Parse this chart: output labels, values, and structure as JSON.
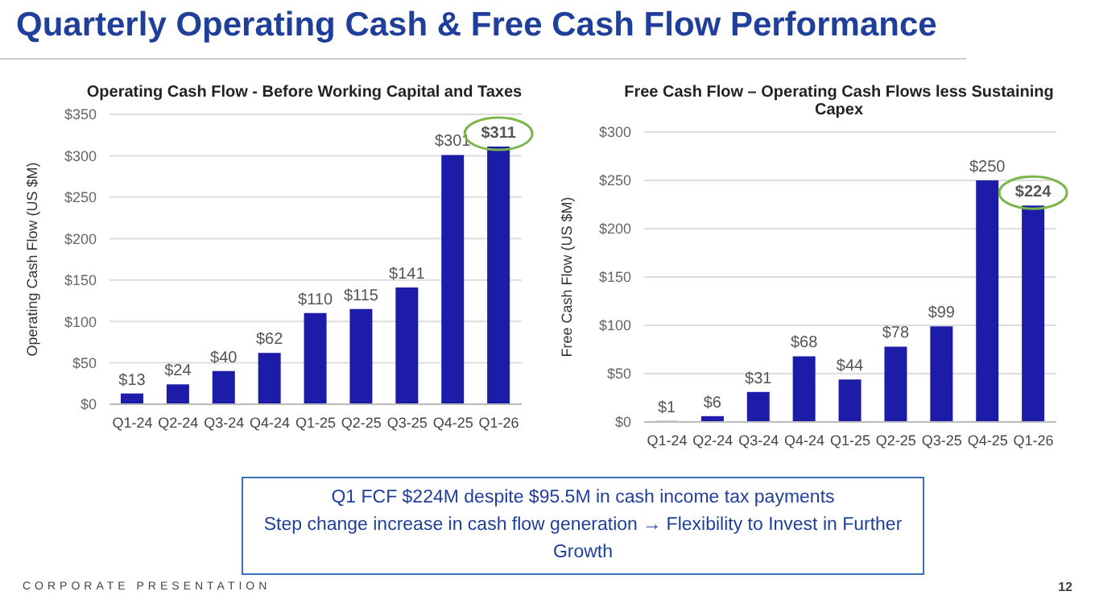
{
  "chart_data": [
    {
      "type": "bar",
      "title": "Quarterly Operating Cash & Free Cash Flow Performance",
      "subtitle": "Operating Cash Flow - Before Working Capital and Taxes",
      "ylabel": "Operating Cash Flow (US $M)",
      "categories": [
        "Q1-24",
        "Q2-24",
        "Q3-24",
        "Q4-24",
        "Q1-25",
        "Q2-25",
        "Q3-25",
        "Q4-25",
        "Q1-26"
      ],
      "values": [
        13,
        24,
        40,
        62,
        110,
        115,
        141,
        301,
        311
      ],
      "value_labels": [
        "$13",
        "$24",
        "$40",
        "$62",
        "$110",
        "$115",
        "$141",
        "$301",
        "$311"
      ],
      "color": "#1c1ca8",
      "ylim": [
        0,
        350
      ],
      "yticks": [
        {
          "value": 0,
          "label": "$0"
        },
        {
          "value": 50,
          "label": "$50"
        },
        {
          "value": 100,
          "label": "$100"
        },
        {
          "value": 150,
          "label": "$150"
        },
        {
          "value": 200,
          "label": "$200"
        },
        {
          "value": 250,
          "label": "$250"
        },
        {
          "value": 300,
          "label": "$300"
        },
        {
          "value": 350,
          "label": "$350"
        }
      ],
      "grid": "y",
      "legend": false,
      "annotations": [
        "CORPORATE PRESENTATION",
        "12"
      ]
    },
    {
      "type": "bar",
      "subtitle": "Free Cash Flow – Operating Cash Flows less Sustaining Capex",
      "ylabel": "Free Cash Flow (US $M)",
      "categories": [
        "Q1-24",
        "Q2-24",
        "Q3-24",
        "Q4-24",
        "Q1-25",
        "Q2-25",
        "Q3-25",
        "Q4-25",
        "Q1-26"
      ],
      "values": [
        1,
        6,
        31,
        68,
        44,
        78,
        99,
        250,
        224
      ],
      "value_labels": [
        "$1",
        "$6",
        "$31",
        "$68",
        "$44",
        "$78",
        "$99",
        "$250",
        "$224"
      ],
      "color": "#1c1ca8",
      "ylim": [
        0,
        300
      ],
      "yticks": [
        {
          "value": 0,
          "label": "$0"
        },
        {
          "value": 50,
          "label": "$50"
        },
        {
          "value": 100,
          "label": "$100"
        },
        {
          "value": 150,
          "label": "$150"
        },
        {
          "value": 200,
          "label": "$200"
        },
        {
          "value": 250,
          "label": "$250"
        },
        {
          "value": 300,
          "label": "$300"
        }
      ],
      "grid": "y",
      "legend": false,
      "annotations": [
        "Q1 FCF $224M despite $95.5M in cash income tax payments",
        "Step change increase in cash flow generation → Flexibility to Invest in Further Growth"
      ]
    }
  ]
}
